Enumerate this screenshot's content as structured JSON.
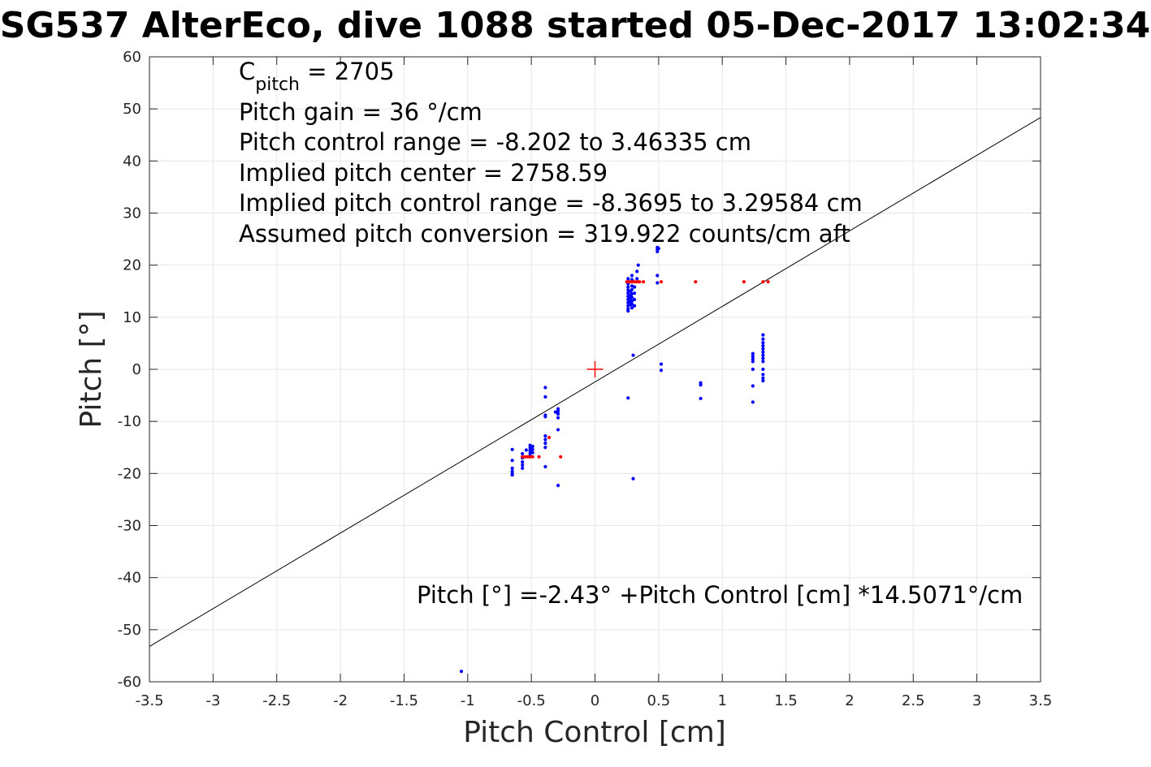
{
  "chart_data": {
    "type": "scatter",
    "title": "SG537 AlterEco, dive 1088 started 05-Dec-2017 13:02:34",
    "xlabel": "Pitch Control [cm]",
    "ylabel": "Pitch [°]",
    "xlim": [
      -3.5,
      3.5
    ],
    "ylim": [
      -60,
      60
    ],
    "xticks": [
      -3.5,
      -3,
      -2.5,
      -2,
      -1.5,
      -1,
      -0.5,
      0,
      0.5,
      1,
      1.5,
      2,
      2.5,
      3,
      3.5
    ],
    "yticks": [
      -60,
      -50,
      -40,
      -30,
      -20,
      -10,
      0,
      10,
      20,
      30,
      40,
      50,
      60
    ],
    "xtick_labels": [
      "-3.5",
      "-3",
      "-2.5",
      "-2",
      "-1.5",
      "-1",
      "-0.5",
      "0",
      "0.5",
      "1",
      "1.5",
      "2",
      "2.5",
      "3",
      "3.5"
    ],
    "ytick_labels": [
      "-60",
      "-50",
      "-40",
      "-30",
      "-20",
      "-10",
      "0",
      "10",
      "20",
      "30",
      "40",
      "50",
      "60"
    ],
    "grid": true,
    "colors": {
      "observed": "#0000ff",
      "target": "#ff0000",
      "fit_line": "#000000",
      "center_marker": "#ff0000",
      "grid": "#e6e6e6",
      "axes": "#262626"
    },
    "annotation_lines": [
      {
        "main": "C",
        "sub": "pitch",
        "rest": " = 2705"
      },
      {
        "main": "Pitch gain = 36 °/cm",
        "sub": "",
        "rest": ""
      },
      {
        "main": "Pitch control range = -8.202 to 3.46335 cm",
        "sub": "",
        "rest": ""
      },
      {
        "main": "Implied pitch center = 2758.59",
        "sub": "",
        "rest": ""
      },
      {
        "main": "Implied pitch control range = -8.3695 to 3.29584 cm",
        "sub": "",
        "rest": ""
      },
      {
        "main": "Assumed pitch conversion = 319.922 counts/cm aft",
        "sub": "",
        "rest": ""
      }
    ],
    "fit_label": "Pitch [°] =-2.43° +Pitch Control [cm] *14.5071°/cm",
    "fit": {
      "intercept": -2.43,
      "slope": 14.5071
    },
    "center_marker": {
      "x": 0,
      "y": 0
    },
    "series": [
      {
        "color": "#0000ff",
        "points": [
          [
            -1.05,
            -58
          ],
          [
            -0.65,
            -15.4
          ],
          [
            -0.65,
            -17.5
          ],
          [
            -0.65,
            -19
          ],
          [
            -0.65,
            -19.6
          ],
          [
            -0.65,
            -20
          ],
          [
            -0.65,
            -20.3
          ],
          [
            -0.57,
            -16.2
          ],
          [
            -0.57,
            -17
          ],
          [
            -0.57,
            -17.8
          ],
          [
            -0.57,
            -18.4
          ],
          [
            -0.57,
            -19
          ],
          [
            -0.54,
            -15.5
          ],
          [
            -0.51,
            -14.6
          ],
          [
            -0.51,
            -15.1
          ],
          [
            -0.51,
            -15.6
          ],
          [
            -0.51,
            -16.1
          ],
          [
            -0.51,
            -16.6
          ],
          [
            -0.49,
            -14.8
          ],
          [
            -0.49,
            -15.4
          ],
          [
            -0.49,
            -16
          ],
          [
            -0.39,
            -3.5
          ],
          [
            -0.39,
            -5.3
          ],
          [
            -0.39,
            -8.8
          ],
          [
            -0.39,
            -9.1
          ],
          [
            -0.39,
            -12.8
          ],
          [
            -0.39,
            -13.5
          ],
          [
            -0.39,
            -14.2
          ],
          [
            -0.39,
            -15
          ],
          [
            -0.39,
            -18.7
          ],
          [
            -0.29,
            -7.6
          ],
          [
            -0.29,
            -8.1
          ],
          [
            -0.29,
            -8.6
          ],
          [
            -0.29,
            -9.3
          ],
          [
            -0.29,
            -11.6
          ],
          [
            -0.29,
            -22.3
          ],
          [
            -0.31,
            -8.2
          ],
          [
            0.26,
            17.4
          ],
          [
            0.26,
            16.4
          ],
          [
            0.26,
            15.8
          ],
          [
            0.26,
            15.2
          ],
          [
            0.26,
            14.6
          ],
          [
            0.26,
            14
          ],
          [
            0.26,
            13.4
          ],
          [
            0.26,
            12.8
          ],
          [
            0.26,
            12.2
          ],
          [
            0.26,
            11.6
          ],
          [
            0.26,
            11.2
          ],
          [
            0.28,
            15
          ],
          [
            0.28,
            14.2
          ],
          [
            0.28,
            13.6
          ],
          [
            0.28,
            13
          ],
          [
            0.28,
            12.4
          ],
          [
            0.29,
            18
          ],
          [
            0.29,
            17.2
          ],
          [
            0.29,
            16
          ],
          [
            0.29,
            15.3
          ],
          [
            0.29,
            14.5
          ],
          [
            0.29,
            13.8
          ],
          [
            0.29,
            13.1
          ],
          [
            0.29,
            12.5
          ],
          [
            0.29,
            11.8
          ],
          [
            0.31,
            15.8
          ],
          [
            0.31,
            14.6
          ],
          [
            0.31,
            13.4
          ],
          [
            0.31,
            12.2
          ],
          [
            0.33,
            18.8
          ],
          [
            0.33,
            17.4
          ],
          [
            0.34,
            20
          ],
          [
            0.3,
            2.7
          ],
          [
            0.26,
            -5.5
          ],
          [
            0.3,
            -21
          ],
          [
            0.49,
            23.4
          ],
          [
            0.49,
            23
          ],
          [
            0.49,
            22.6
          ],
          [
            0.5,
            23.2
          ],
          [
            0.49,
            18
          ],
          [
            0.49,
            16.6
          ],
          [
            0.52,
            1
          ],
          [
            0.52,
            -0.2
          ],
          [
            0.83,
            -2.6
          ],
          [
            0.83,
            -3
          ],
          [
            0.83,
            -5.6
          ],
          [
            1.24,
            3
          ],
          [
            1.24,
            2.5
          ],
          [
            1.24,
            2
          ],
          [
            1.24,
            1.5
          ],
          [
            1.24,
            0
          ],
          [
            1.24,
            -3.2
          ],
          [
            1.24,
            -6.3
          ],
          [
            1.32,
            6.6
          ],
          [
            1.32,
            5.8
          ],
          [
            1.32,
            5.1
          ],
          [
            1.32,
            4.5
          ],
          [
            1.32,
            3.9
          ],
          [
            1.32,
            3.3
          ],
          [
            1.32,
            2.7
          ],
          [
            1.32,
            2.1
          ],
          [
            1.32,
            1.5
          ],
          [
            1.32,
            0
          ],
          [
            1.32,
            -1
          ],
          [
            1.32,
            -1.7
          ],
          [
            1.32,
            -2.2
          ]
        ]
      },
      {
        "color": "#ff0000",
        "points": [
          [
            -0.57,
            -16.8
          ],
          [
            -0.55,
            -16.8
          ],
          [
            -0.53,
            -16.8
          ],
          [
            -0.51,
            -16.8
          ],
          [
            -0.49,
            -16.8
          ],
          [
            -0.44,
            -16.8
          ],
          [
            -0.36,
            -13.1
          ],
          [
            -0.27,
            -16.8
          ],
          [
            0.25,
            16.8
          ],
          [
            0.27,
            16.8
          ],
          [
            0.29,
            16.8
          ],
          [
            0.31,
            16.8
          ],
          [
            0.33,
            16.8
          ],
          [
            0.35,
            16.8
          ],
          [
            0.38,
            16.8
          ],
          [
            0.52,
            16.8
          ],
          [
            0.79,
            16.8
          ],
          [
            1.17,
            16.8
          ],
          [
            1.32,
            16.8
          ],
          [
            1.36,
            16.8
          ]
        ]
      }
    ]
  }
}
